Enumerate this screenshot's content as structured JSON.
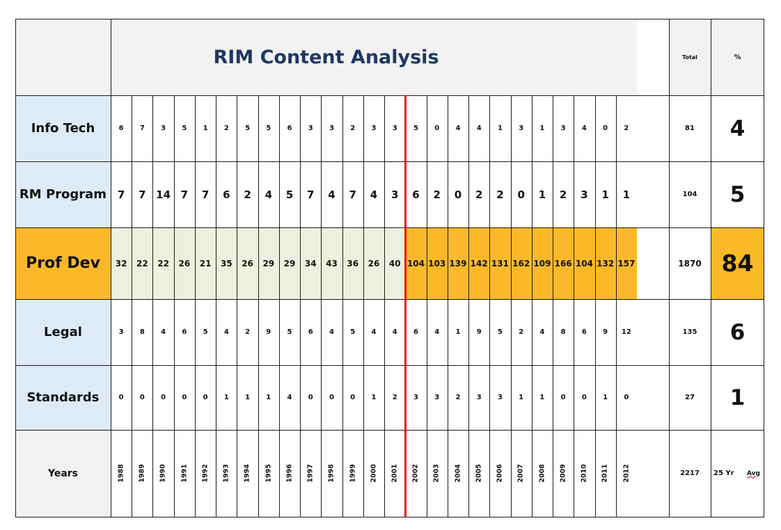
{
  "title": "RIM Content Analysis",
  "total_header": "Total",
  "percent_header": "%",
  "colors": {
    "label_bg": "#deebf7",
    "header_bg": "#f2f2f2",
    "highlight": "#fbb929",
    "highlight_light": "#ebf1de",
    "cutoff_line": "#ff0000"
  },
  "chart_data": {
    "type": "table",
    "title": "RIM Content Analysis",
    "years": [
      "1988",
      "1989",
      "1990",
      "1991",
      "1992",
      "1993",
      "1994",
      "1995",
      "1996",
      "1997",
      "1998",
      "1999",
      "2000",
      "2001",
      "2002",
      "2003",
      "2004",
      "2005",
      "2006",
      "2007",
      "2008",
      "2009",
      "2010",
      "2011",
      "2012"
    ],
    "cutoff_after": "2001",
    "rows": [
      {
        "label": "Info Tech",
        "values": [
          6,
          7,
          3,
          5,
          1,
          2,
          5,
          5,
          6,
          3,
          3,
          2,
          3,
          3,
          5,
          0,
          4,
          4,
          1,
          3,
          1,
          3,
          4,
          0,
          2
        ],
        "total": 81,
        "percent": 4
      },
      {
        "label": "RM Program",
        "values": [
          7,
          7,
          14,
          7,
          7,
          6,
          2,
          4,
          5,
          7,
          4,
          7,
          4,
          3,
          6,
          2,
          0,
          2,
          2,
          0,
          1,
          2,
          3,
          1,
          1
        ],
        "total": 104,
        "percent": 5
      },
      {
        "label": "Prof Dev",
        "values": [
          32,
          22,
          22,
          26,
          21,
          35,
          26,
          29,
          29,
          34,
          43,
          36,
          26,
          40,
          104,
          103,
          139,
          142,
          131,
          162,
          109,
          166,
          104,
          132,
          157
        ],
        "total": 1870,
        "percent": 84,
        "highlight": true
      },
      {
        "label": "Legal",
        "values": [
          3,
          8,
          4,
          6,
          5,
          4,
          2,
          9,
          5,
          6,
          4,
          5,
          4,
          4,
          6,
          4,
          1,
          9,
          5,
          2,
          4,
          8,
          6,
          9,
          12
        ],
        "total": 135,
        "percent": 6
      },
      {
        "label": "Standards",
        "values": [
          0,
          0,
          0,
          0,
          0,
          1,
          1,
          1,
          4,
          0,
          0,
          0,
          1,
          2,
          3,
          3,
          2,
          3,
          3,
          1,
          1,
          0,
          0,
          1,
          0
        ],
        "total": 27,
        "percent": 1
      }
    ],
    "footer": {
      "label": "Years",
      "total": 2217,
      "avg_text_1": "25 Yr",
      "avg_text_2": "Avg"
    }
  }
}
